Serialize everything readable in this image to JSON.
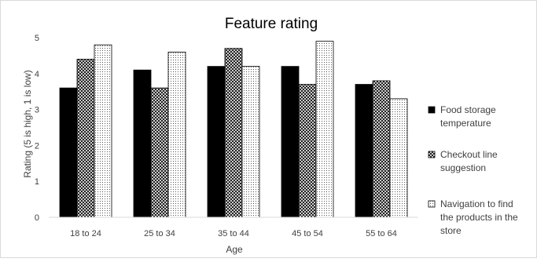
{
  "chart_data": {
    "type": "bar",
    "title": "Feature rating",
    "xlabel": "Age",
    "ylabel": "Rating (5 is high, 1 is low)",
    "ylim": [
      0,
      5
    ],
    "yticks": [
      "0",
      "1",
      "2",
      "3",
      "4",
      "5"
    ],
    "categories": [
      "18 to 24",
      "25 to 34",
      "35 to 44",
      "45 to 54",
      "55 to 64"
    ],
    "grid": false,
    "legend_position": "right",
    "series": [
      {
        "name": "Food storage temperature",
        "name_lines": [
          "Food storage",
          "temperature"
        ],
        "pattern": "solid",
        "color": "#000000",
        "values": [
          3.6,
          4.1,
          4.2,
          4.2,
          3.7
        ]
      },
      {
        "name": "Checkout line suggestion",
        "name_lines": [
          "Checkout line",
          "suggestion"
        ],
        "pattern": "crosshatch",
        "color": "#000000",
        "values": [
          4.4,
          3.6,
          4.7,
          3.7,
          3.8
        ]
      },
      {
        "name": "Navigation to find the products in the store",
        "name_lines": [
          "Navigation to find",
          "the products in the",
          "store"
        ],
        "pattern": "dotted",
        "color": "#000000",
        "values": [
          4.8,
          4.6,
          4.2,
          4.9,
          3.3
        ]
      }
    ]
  }
}
